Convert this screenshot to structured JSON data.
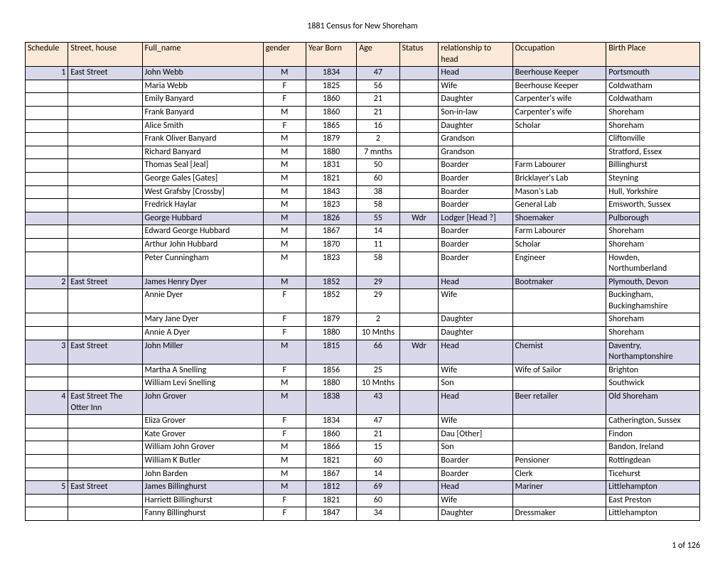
{
  "title": "1881 Census for New Shoreham",
  "footer": "1 of 126",
  "columns": [
    "Schedule",
    "Street, house",
    "Full_name",
    "gender",
    "Year Born",
    "Age",
    "Status",
    "relationship to head",
    "Occupation",
    "Birth Place"
  ],
  "rows": [
    {
      "hl": true,
      "c": [
        "1",
        "East Street",
        "John Webb",
        "M",
        "1834",
        "47",
        "",
        "Head",
        "Beerhouse Keeper",
        "Portsmouth"
      ]
    },
    {
      "hl": false,
      "c": [
        "",
        "",
        "Maria Webb",
        "F",
        "1825",
        "56",
        "",
        "Wife",
        "Beerhouse Keeper",
        "Coldwatham"
      ]
    },
    {
      "hl": false,
      "c": [
        "",
        "",
        "Emily Banyard",
        "F",
        "1860",
        "21",
        "",
        "Daughter",
        "Carpenter's wife",
        "Coldwatham"
      ]
    },
    {
      "hl": false,
      "c": [
        "",
        "",
        "Frank Banyard",
        "M",
        "1860",
        "21",
        "",
        "Son-in-law",
        "Carpenter's wife",
        "Shoreham"
      ]
    },
    {
      "hl": false,
      "c": [
        "",
        "",
        "Alice Smith",
        "F",
        "1865",
        "16",
        "",
        "Daughter",
        "Scholar",
        "Shoreham"
      ]
    },
    {
      "hl": false,
      "c": [
        "",
        "",
        "Frank Oliver Banyard",
        "M",
        "1879",
        "2",
        "",
        "Grandson",
        "",
        "Cliftonville"
      ]
    },
    {
      "hl": false,
      "c": [
        "",
        "",
        "Richard Banyard",
        "M",
        "1880",
        "7 mnths",
        "",
        "Grandson",
        "",
        "Stratford, Essex"
      ]
    },
    {
      "hl": false,
      "c": [
        "",
        "",
        "Thomas Seal [Jeal]",
        "M",
        "1831",
        "50",
        "",
        "Boarder",
        "Farm Labourer",
        "Billinghurst"
      ]
    },
    {
      "hl": false,
      "c": [
        "",
        "",
        "George Gales [Gates]",
        "M",
        "1821",
        "60",
        "",
        "Boarder",
        "Bricklayer's Lab",
        "Steyning"
      ]
    },
    {
      "hl": false,
      "c": [
        "",
        "",
        "West Grafsby [Crossby]",
        "M",
        "1843",
        "38",
        "",
        "Boarder",
        "Mason's Lab",
        "Hull, Yorkshire"
      ]
    },
    {
      "hl": false,
      "c": [
        "",
        "",
        "Fredrick Haylar",
        "M",
        "1823",
        "58",
        "",
        "Boarder",
        "General Lab",
        "Emsworth, Sussex"
      ]
    },
    {
      "hl": true,
      "c": [
        "",
        "",
        "George Hubbard",
        "M",
        "1826",
        "55",
        "Wdr",
        "Lodger [Head ?]",
        "Shoemaker",
        "Pulborough"
      ]
    },
    {
      "hl": false,
      "c": [
        "",
        "",
        "Edward George Hubbard",
        "M",
        "1867",
        "14",
        "",
        "Boarder",
        "Farm Labourer",
        "Shoreham"
      ]
    },
    {
      "hl": false,
      "c": [
        "",
        "",
        "Arthur John Hubbard",
        "M",
        "1870",
        "11",
        "",
        "Boarder",
        "Scholar",
        "Shoreham"
      ]
    },
    {
      "hl": false,
      "c": [
        "",
        "",
        "Peter Cunningham",
        "M",
        "1823",
        "58",
        "",
        "Boarder",
        "Engineer",
        "Howden, Northumberland"
      ]
    },
    {
      "hl": true,
      "c": [
        "2",
        "East Street",
        "James Henry Dyer",
        "M",
        "1852",
        "29",
        "",
        "Head",
        "Bootmaker",
        "Plymouth, Devon"
      ]
    },
    {
      "hl": false,
      "c": [
        "",
        "",
        "Annie Dyer",
        "F",
        "1852",
        "29",
        "",
        "Wife",
        "",
        "Buckingham, Buckinghamshire"
      ]
    },
    {
      "hl": false,
      "c": [
        "",
        "",
        "Mary Jane Dyer",
        "F",
        "1879",
        "2",
        "",
        "Daughter",
        "",
        "Shoreham"
      ]
    },
    {
      "hl": false,
      "c": [
        "",
        "",
        "Annie A Dyer",
        "F",
        "1880",
        "10 Mnths",
        "",
        "Daughter",
        "",
        "Shoreham"
      ]
    },
    {
      "hl": true,
      "c": [
        "3",
        "East Street",
        "John Miller",
        "M",
        "1815",
        "66",
        "Wdr",
        "Head",
        "Chemist",
        "Daventry, Northamptonshire"
      ]
    },
    {
      "hl": false,
      "c": [
        "",
        "",
        "Martha A Snelling",
        "F",
        "1856",
        "25",
        "",
        "Wife",
        "Wife of Sailor",
        "Brighton"
      ]
    },
    {
      "hl": false,
      "c": [
        "",
        "",
        "William Levi Snelling",
        "M",
        "1880",
        "10 Mnths",
        "",
        "Son",
        "",
        "Southwick"
      ]
    },
    {
      "hl": true,
      "c": [
        "4",
        "East Street The Otter Inn",
        "John Grover",
        "M",
        "1838",
        "43",
        "",
        "Head",
        "Beer retailer",
        "Old Shoreham"
      ]
    },
    {
      "hl": false,
      "c": [
        "",
        "",
        "Eliza Grover",
        "F",
        "1834",
        "47",
        "",
        "Wife",
        "",
        "Catherington, Sussex"
      ]
    },
    {
      "hl": false,
      "c": [
        "",
        "",
        "Kate Grover",
        "F",
        "1860",
        "21",
        "",
        "Dau [Other]",
        "",
        "Findon"
      ]
    },
    {
      "hl": false,
      "c": [
        "",
        "",
        "William John Grover",
        "M",
        "1866",
        "15",
        "",
        "Son",
        "",
        "Bandon, Ireland"
      ]
    },
    {
      "hl": false,
      "c": [
        "",
        "",
        "William K Butler",
        "M",
        "1821",
        "60",
        "",
        "Boarder",
        "Pensioner",
        "Rottingdean"
      ]
    },
    {
      "hl": false,
      "c": [
        "",
        "",
        "John Barden",
        "M",
        "1867",
        "14",
        "",
        "Boarder",
        "Clerk",
        "Ticehurst"
      ]
    },
    {
      "hl": true,
      "c": [
        "5",
        "East Street",
        "James Billinghurst",
        "M",
        "1812",
        "69",
        "",
        "Head",
        "Mariner",
        "Littlehampton"
      ]
    },
    {
      "hl": false,
      "c": [
        "",
        "",
        "Harriett Billinghurst",
        "F",
        "1821",
        "60",
        "",
        "Wife",
        "",
        "East Preston"
      ]
    },
    {
      "hl": false,
      "c": [
        "",
        "",
        "Fanny Billinghurst",
        "F",
        "1847",
        "34",
        "",
        "Daughter",
        "Dressmaker",
        "Littlehampton"
      ]
    }
  ]
}
